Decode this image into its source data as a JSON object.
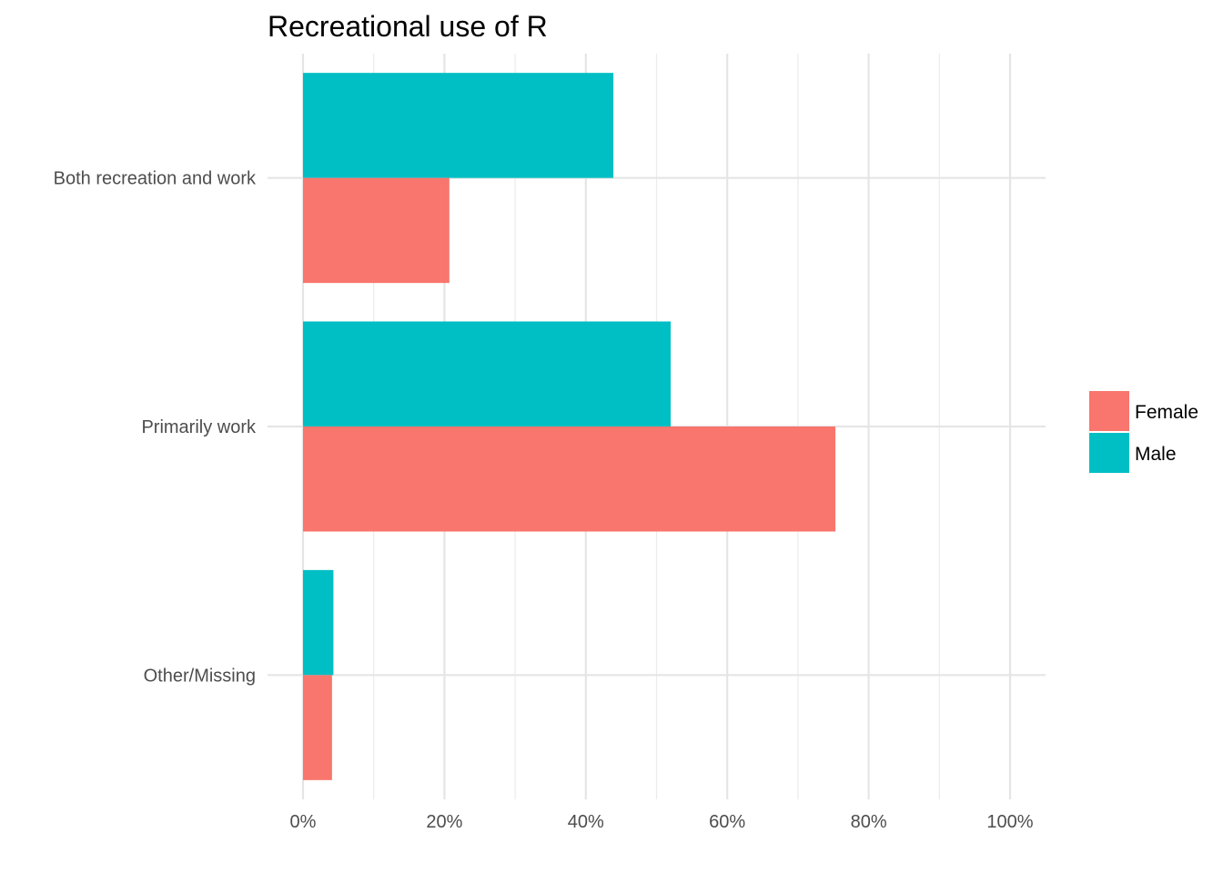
{
  "chart_data": {
    "type": "bar",
    "orientation": "horizontal",
    "title": "Recreational use of R",
    "xlabel": "",
    "ylabel": "",
    "categories": [
      "Both recreation and work",
      "Primarily work",
      "Other/Missing"
    ],
    "series": [
      {
        "name": "Female",
        "color": "#F8766D",
        "values": [
          0.207,
          0.753,
          0.041
        ]
      },
      {
        "name": "Male",
        "color": "#00BFC4",
        "values": [
          0.439,
          0.52,
          0.043
        ]
      }
    ],
    "xlim": [
      0,
      1
    ],
    "x_ticks": [
      0,
      0.2,
      0.4,
      0.6,
      0.8,
      1.0
    ],
    "x_tick_labels": [
      "0%",
      "20%",
      "40%",
      "60%",
      "80%",
      "100%"
    ],
    "grid": true,
    "legend_position": "right"
  }
}
